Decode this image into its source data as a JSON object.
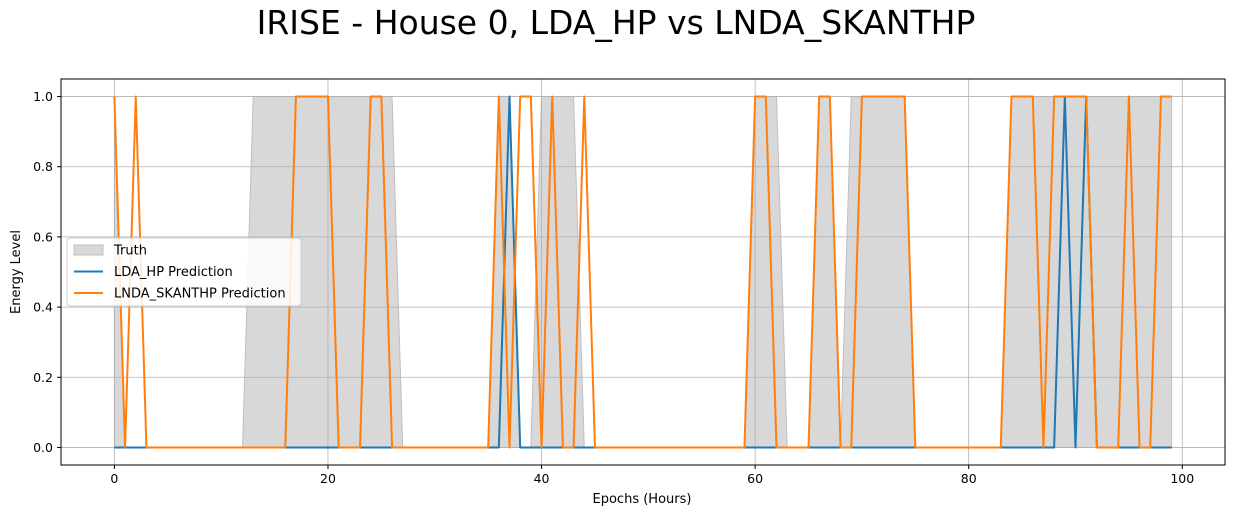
{
  "chart_data": {
    "type": "line",
    "title": "IRISE - House 0, LDA_HP vs LNDA_SKANTHP",
    "xlabel": "Epochs (Hours)",
    "ylabel": "Energy Level",
    "xlim": [
      -5,
      104
    ],
    "ylim": [
      -0.05,
      1.05
    ],
    "xticks": [
      0,
      20,
      40,
      60,
      80,
      100
    ],
    "yticks": [
      0.0,
      0.2,
      0.4,
      0.6,
      0.8,
      1.0
    ],
    "grid": true,
    "legend_position": "center-left",
    "x": [
      0,
      1,
      2,
      3,
      4,
      5,
      6,
      7,
      8,
      9,
      10,
      11,
      12,
      13,
      14,
      15,
      16,
      17,
      18,
      19,
      20,
      21,
      22,
      23,
      24,
      25,
      26,
      27,
      28,
      29,
      30,
      31,
      32,
      33,
      34,
      35,
      36,
      37,
      38,
      39,
      40,
      41,
      42,
      43,
      44,
      45,
      46,
      47,
      48,
      49,
      50,
      51,
      52,
      53,
      54,
      55,
      56,
      57,
      58,
      59,
      60,
      61,
      62,
      63,
      64,
      65,
      66,
      67,
      68,
      69,
      70,
      71,
      72,
      73,
      74,
      75,
      76,
      77,
      78,
      79,
      80,
      81,
      82,
      83,
      84,
      85,
      86,
      87,
      88,
      89,
      90,
      91,
      92,
      93,
      94,
      95,
      96,
      97,
      98,
      99
    ],
    "series": [
      {
        "name": "Truth",
        "kind": "area",
        "color": "#d8d8d8",
        "edge_color": "#bfbfbf",
        "values": [
          1,
          0,
          0,
          0,
          0,
          0,
          0,
          0,
          0,
          0,
          0,
          0,
          0,
          1,
          1,
          1,
          1,
          1,
          1,
          1,
          1,
          1,
          1,
          1,
          1,
          1,
          1,
          0,
          0,
          0,
          0,
          0,
          0,
          0,
          0,
          0,
          1,
          1,
          0,
          0,
          1,
          1,
          1,
          1,
          0,
          0,
          0,
          0,
          0,
          0,
          0,
          0,
          0,
          0,
          0,
          0,
          0,
          0,
          0,
          0,
          1,
          1,
          1,
          0,
          0,
          0,
          1,
          1,
          0,
          1,
          1,
          1,
          1,
          1,
          1,
          0,
          0,
          0,
          0,
          0,
          0,
          0,
          0,
          0,
          1,
          1,
          1,
          1,
          1,
          1,
          1,
          1,
          1,
          1,
          1,
          1,
          1,
          1,
          1,
          1
        ]
      },
      {
        "name": "LDA_HP Prediction",
        "kind": "line",
        "color": "#1f77b4",
        "values": [
          0,
          0,
          0,
          0,
          0,
          0,
          0,
          0,
          0,
          0,
          0,
          0,
          0,
          0,
          0,
          0,
          0,
          0,
          0,
          0,
          0,
          0,
          0,
          0,
          0,
          0,
          0,
          0,
          0,
          0,
          0,
          0,
          0,
          0,
          0,
          0,
          0,
          1,
          0,
          0,
          0,
          0,
          0,
          0,
          0,
          0,
          0,
          0,
          0,
          0,
          0,
          0,
          0,
          0,
          0,
          0,
          0,
          0,
          0,
          0,
          0,
          0,
          0,
          0,
          0,
          0,
          0,
          0,
          0,
          0,
          0,
          0,
          0,
          0,
          0,
          0,
          0,
          0,
          0,
          0,
          0,
          0,
          0,
          0,
          0,
          0,
          0,
          0,
          0,
          1,
          0,
          1,
          0,
          0,
          0,
          0,
          0,
          0,
          0,
          0
        ]
      },
      {
        "name": "LNDA_SKANTHP Prediction",
        "kind": "line",
        "color": "#ff7f0e",
        "values": [
          1,
          0,
          1,
          0,
          0,
          0,
          0,
          0,
          0,
          0,
          0,
          0,
          0,
          0,
          0,
          0,
          0,
          1,
          1,
          1,
          1,
          0,
          0,
          0,
          1,
          1,
          0,
          0,
          0,
          0,
          0,
          0,
          0,
          0,
          0,
          0,
          1,
          0,
          1,
          1,
          0,
          1,
          0,
          0,
          1,
          0,
          0,
          0,
          0,
          0,
          0,
          0,
          0,
          0,
          0,
          0,
          0,
          0,
          0,
          0,
          1,
          1,
          0,
          0,
          0,
          0,
          1,
          1,
          0,
          0,
          1,
          1,
          1,
          1,
          1,
          0,
          0,
          0,
          0,
          0,
          0,
          0,
          0,
          0,
          1,
          1,
          1,
          0,
          1,
          1,
          1,
          1,
          0,
          0,
          0,
          1,
          0,
          0,
          1,
          1
        ]
      }
    ]
  }
}
